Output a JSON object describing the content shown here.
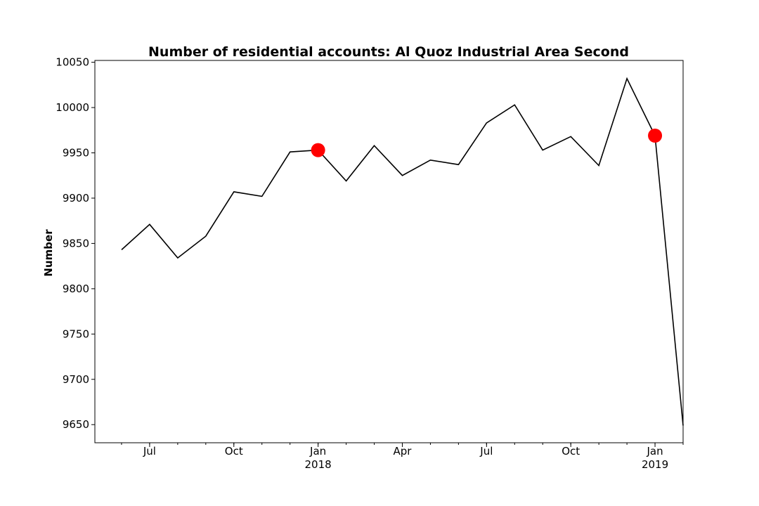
{
  "chart_data": {
    "type": "line",
    "title": "Number of residential accounts: Al Quoz Industrial Area Second",
    "xlabel": "",
    "ylabel": "Number",
    "x": [
      "2017-06",
      "2017-07",
      "2017-08",
      "2017-09",
      "2017-10",
      "2017-11",
      "2017-12",
      "2018-01",
      "2018-02",
      "2018-03",
      "2018-04",
      "2018-05",
      "2018-06",
      "2018-07",
      "2018-08",
      "2018-09",
      "2018-10",
      "2018-11",
      "2018-12",
      "2019-01",
      "2019-02"
    ],
    "series": [
      {
        "values": [
          9843,
          9871,
          9834,
          9858,
          9907,
          9902,
          9951,
          9953,
          9919,
          9958,
          9925,
          9942,
          9937,
          9983,
          10003,
          9953,
          9968,
          9936,
          10032,
          9969,
          9649
        ],
        "color": "#000000"
      }
    ],
    "highlighted_points": [
      {
        "x": "2018-01",
        "y": 9953,
        "color": "#ff0000"
      },
      {
        "x": "2019-01",
        "y": 9969,
        "color": "#ff0000"
      }
    ],
    "ylim": [
      9630,
      10052
    ],
    "y_ticks": [
      9650,
      9700,
      9750,
      9800,
      9850,
      9900,
      9950,
      10000,
      10050
    ],
    "x_ticks": [
      {
        "x": "2017-07",
        "label": "Jul",
        "sublabel": ""
      },
      {
        "x": "2017-10",
        "label": "Oct",
        "sublabel": ""
      },
      {
        "x": "2018-01",
        "label": "Jan",
        "sublabel": "2018"
      },
      {
        "x": "2018-04",
        "label": "Apr",
        "sublabel": ""
      },
      {
        "x": "2018-07",
        "label": "Jul",
        "sublabel": ""
      },
      {
        "x": "2018-10",
        "label": "Oct",
        "sublabel": ""
      },
      {
        "x": "2019-01",
        "label": "Jan",
        "sublabel": "2019"
      }
    ],
    "grid": false,
    "legend": "none"
  }
}
